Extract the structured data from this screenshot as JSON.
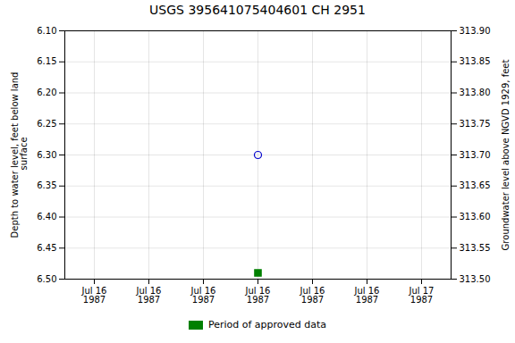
{
  "chart_data": {
    "type": "scatter",
    "title": "USGS 395641075404601 CH  2951",
    "categories": [
      "Jul 16\n1987",
      "Jul 16\n1987",
      "Jul 16\n1987",
      "Jul 16\n1987",
      "Jul 16\n1987",
      "Jul 16\n1987",
      "Jul 17\n1987"
    ],
    "series": [
      {
        "values": [
          null,
          null,
          null,
          6.3,
          null,
          null,
          null
        ],
        "color": "#0000cc",
        "marker": "circle_open"
      },
      {
        "name": "Period of approved data",
        "values": [
          null,
          null,
          null,
          6.49,
          null,
          null,
          null
        ],
        "color": "#008000",
        "marker": "square"
      }
    ],
    "ylabel": "Depth to water level, feet below land\n surface",
    "ylim": [
      6.5,
      6.1
    ],
    "yticks": [
      {
        "value": 6.1,
        "label": "6.10"
      },
      6.15,
      {
        "value": 6.2,
        "label": "6.20"
      },
      6.25,
      {
        "value": 6.3,
        "label": "6.30"
      },
      6.35,
      {
        "value": 6.4,
        "label": "6.40"
      },
      6.45,
      {
        "value": 6.5,
        "label": "6.50"
      }
    ],
    "y2label": "Groundwater level above NGVD 1929, feet",
    "y2lim": [
      313.5,
      313.9
    ],
    "y2ticks": [
      {
        "value": 313.9,
        "label": "313.90"
      },
      313.85,
      {
        "value": 313.8,
        "label": "313.80"
      },
      313.75,
      {
        "value": 313.7,
        "label": "313.70"
      },
      313.65,
      {
        "value": 313.6,
        "label": "313.60"
      },
      313.55,
      {
        "value": 313.5,
        "label": "313.50"
      }
    ],
    "grid": true,
    "legend": "bottom"
  }
}
